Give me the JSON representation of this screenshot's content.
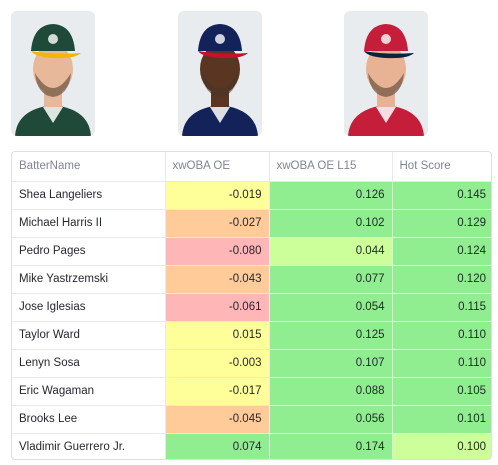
{
  "photos": [
    {
      "alt": "player-headshot-athletics",
      "cap_color": "#1f4a3a",
      "brim_color": "#f2b705",
      "jersey_color": "#1f4a3a",
      "skin_color": "#e7b99a"
    },
    {
      "alt": "player-headshot-braves",
      "cap_color": "#14225a",
      "brim_color": "#c8102e",
      "jersey_color": "#14225a",
      "skin_color": "#5a3522"
    },
    {
      "alt": "player-headshot-cardinals",
      "cap_color": "#c41e3a",
      "brim_color": "#0c2340",
      "jersey_color": "#c41e3a",
      "skin_color": "#e8b394"
    }
  ],
  "table": {
    "columns": [
      "BatterName",
      "xwOBA OE",
      "xwOBA OE L15",
      "Hot Score"
    ],
    "rows": [
      {
        "name": "Shea Langeliers",
        "xwoba_oe": "-0.019",
        "xwoba_oe_l15": "0.126",
        "hot_score": "0.145",
        "c1": "#ffff99",
        "c2": "#90ee90",
        "c3": "#90ee90"
      },
      {
        "name": "Michael Harris II",
        "xwoba_oe": "-0.027",
        "xwoba_oe_l15": "0.102",
        "hot_score": "0.129",
        "c1": "#ffcc99",
        "c2": "#90ee90",
        "c3": "#90ee90"
      },
      {
        "name": "Pedro Pages",
        "xwoba_oe": "-0.080",
        "xwoba_oe_l15": "0.044",
        "hot_score": "0.124",
        "c1": "#ffb6b6",
        "c2": "#ccff99",
        "c3": "#90ee90"
      },
      {
        "name": "Mike Yastrzemski",
        "xwoba_oe": "-0.043",
        "xwoba_oe_l15": "0.077",
        "hot_score": "0.120",
        "c1": "#ffcc99",
        "c2": "#90ee90",
        "c3": "#90ee90"
      },
      {
        "name": "Jose Iglesias",
        "xwoba_oe": "-0.061",
        "xwoba_oe_l15": "0.054",
        "hot_score": "0.115",
        "c1": "#ffb6b6",
        "c2": "#90ee90",
        "c3": "#90ee90"
      },
      {
        "name": "Taylor Ward",
        "xwoba_oe": "0.015",
        "xwoba_oe_l15": "0.125",
        "hot_score": "0.110",
        "c1": "#ffff99",
        "c2": "#90ee90",
        "c3": "#90ee90"
      },
      {
        "name": "Lenyn Sosa",
        "xwoba_oe": "-0.003",
        "xwoba_oe_l15": "0.107",
        "hot_score": "0.110",
        "c1": "#ffff99",
        "c2": "#90ee90",
        "c3": "#90ee90"
      },
      {
        "name": "Eric Wagaman",
        "xwoba_oe": "-0.017",
        "xwoba_oe_l15": "0.088",
        "hot_score": "0.105",
        "c1": "#ffff99",
        "c2": "#90ee90",
        "c3": "#90ee90"
      },
      {
        "name": "Brooks Lee",
        "xwoba_oe": "-0.045",
        "xwoba_oe_l15": "0.056",
        "hot_score": "0.101",
        "c1": "#ffcc99",
        "c2": "#90ee90",
        "c3": "#90ee90"
      },
      {
        "name": "Vladimir Guerrero Jr.",
        "xwoba_oe": "0.074",
        "xwoba_oe_l15": "0.174",
        "hot_score": "0.100",
        "c1": "#90ee90",
        "c2": "#90ee90",
        "c3": "#ccff99"
      }
    ]
  }
}
